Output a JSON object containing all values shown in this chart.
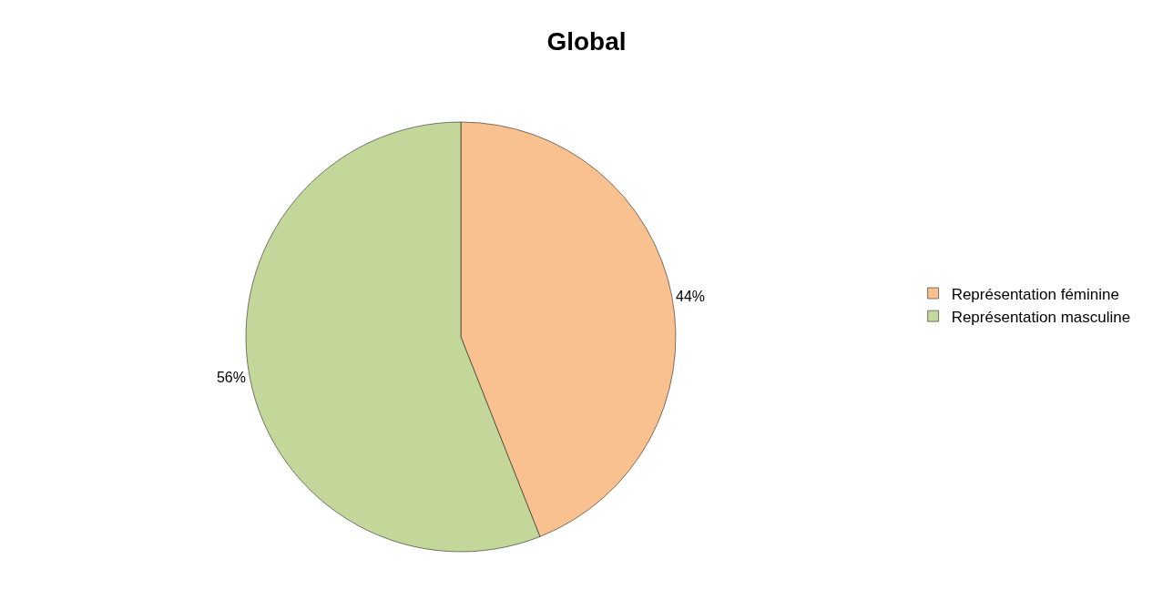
{
  "chart_data": {
    "type": "pie",
    "title": "Global",
    "categories": [
      "Représentation féminine",
      "Représentation masculine"
    ],
    "values": [
      44,
      56
    ],
    "colors": [
      "#f9c090",
      "#c4d79b"
    ],
    "value_labels": [
      "44%",
      "56%"
    ],
    "legend": "right"
  }
}
